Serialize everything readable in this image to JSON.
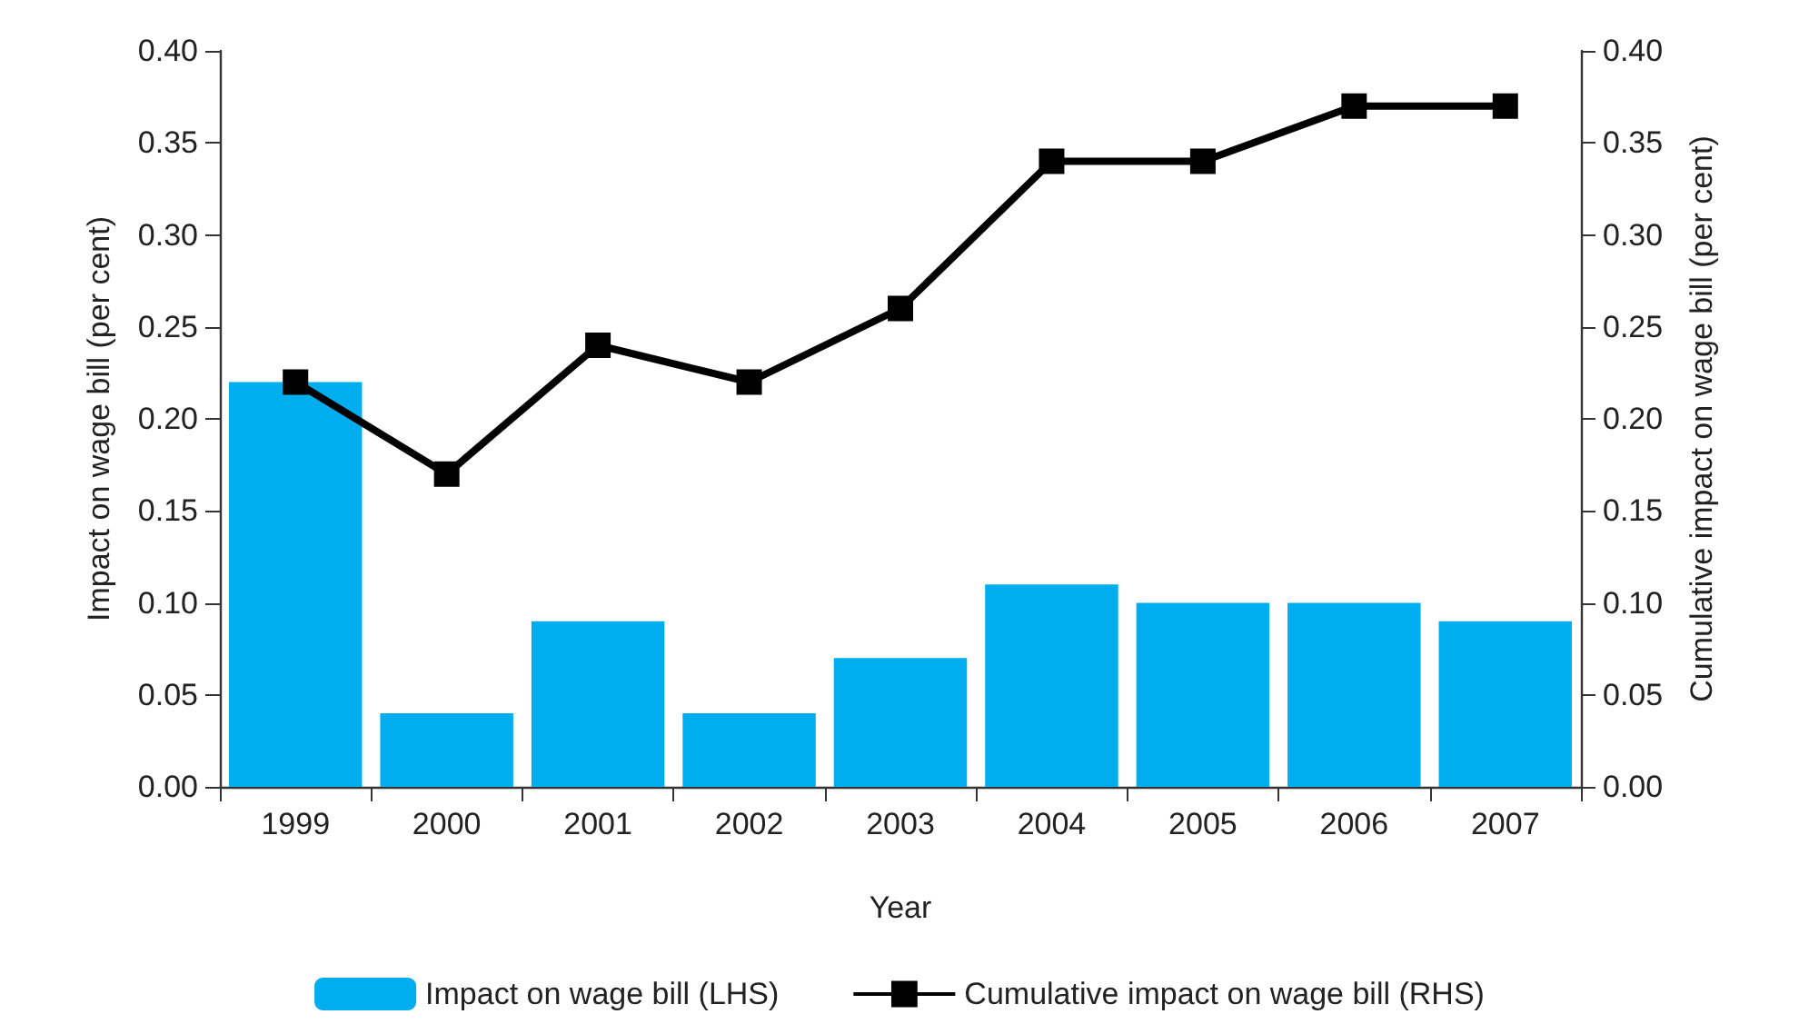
{
  "chart_data": {
    "type": "bar",
    "xlabel": "Year",
    "ylabel": "Impact on wage bill (per cent)",
    "y2label": "Cumulative impact on wage bill (per cent)",
    "categories": [
      "1999",
      "2000",
      "2001",
      "2002",
      "2003",
      "2004",
      "2005",
      "2006",
      "2007"
    ],
    "series": [
      {
        "name": "Impact on wage bill (LHS)",
        "color": "#00aeef",
        "values": [
          0.22,
          0.04,
          0.09,
          0.04,
          0.07,
          0.11,
          0.1,
          0.1,
          0.09
        ]
      },
      {
        "name": "Cumulative impact on wage bill (RHS)",
        "type": "line",
        "axis": "y2",
        "color": "#000000",
        "marker": "square",
        "values": [
          0.22,
          0.17,
          0.24,
          0.22,
          0.26,
          0.34,
          0.34,
          0.37,
          0.37
        ]
      }
    ],
    "ylim": [
      0,
      0.4
    ],
    "yticks": [
      {
        "value": 0,
        "label": "0.00"
      },
      {
        "value": 0.05,
        "label": "0.05"
      },
      {
        "value": 0.1,
        "label": "0.10"
      },
      {
        "value": 0.15,
        "label": "0.15"
      },
      {
        "value": 0.2,
        "label": "0.20"
      },
      {
        "value": 0.25,
        "label": "0.25"
      },
      {
        "value": 0.3,
        "label": "0.30"
      },
      {
        "value": 0.35,
        "label": "0.35"
      },
      {
        "value": 0.4,
        "label": "0.40"
      }
    ],
    "y2lim": [
      0,
      0.4
    ],
    "y2ticks": [
      {
        "value": 0,
        "label": "0.00"
      },
      {
        "value": 0.05,
        "label": "0.05"
      },
      {
        "value": 0.1,
        "label": "0.10"
      },
      {
        "value": 0.15,
        "label": "0.15"
      },
      {
        "value": 0.2,
        "label": "0.20"
      },
      {
        "value": 0.25,
        "label": "0.25"
      },
      {
        "value": 0.3,
        "label": "0.30"
      },
      {
        "value": 0.35,
        "label": "0.35"
      },
      {
        "value": 0.4,
        "label": "0.40"
      }
    ],
    "grid": false,
    "legend": "bottom"
  }
}
